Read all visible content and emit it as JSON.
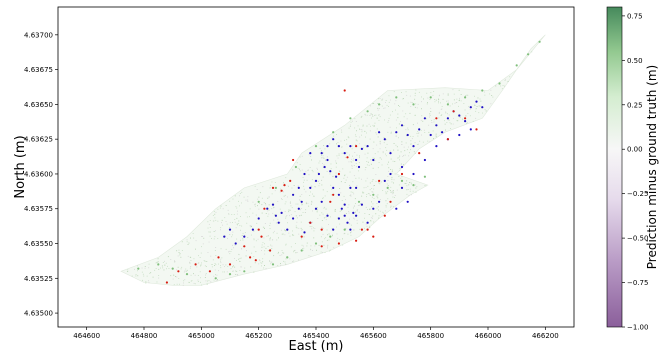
{
  "chart_data": {
    "type": "scatter",
    "title": "",
    "xlabel": "East (m)",
    "ylabel": "North (m)",
    "xlim": [
      464500,
      466300
    ],
    "ylim": [
      4.6349,
      4.6372
    ],
    "xticks": [
      464600,
      464800,
      465000,
      465200,
      465400,
      465600,
      465800,
      466000,
      466200
    ],
    "xtick_labels": [
      "464600",
      "464800",
      "465000",
      "465200",
      "465400",
      "465600",
      "465800",
      "466000",
      "466200"
    ],
    "yticks": [
      4.635,
      4.63525,
      4.6355,
      4.63575,
      4.636,
      4.63625,
      4.6365,
      4.63675,
      4.637
    ],
    "ytick_labels": [
      "4.63500",
      "4.63525",
      "4.63550",
      "4.63575",
      "4.63600",
      "4.63625",
      "4.63650",
      "4.63675",
      "4.63700"
    ],
    "grid": false,
    "colorbar": {
      "label": "Prediction minus ground truth (m)",
      "colormap": "PRGn",
      "range": [
        -1.0,
        0.8
      ],
      "ticks": [
        0.75,
        0.5,
        0.25,
        0.0,
        -0.25,
        -0.5,
        -0.75,
        -1.0
      ],
      "tick_labels": [
        "0.75",
        "0.50",
        "0.25",
        "0.00",
        "−0.25",
        "−0.50",
        "−0.75",
        "−1.00"
      ]
    },
    "outline": [
      [
        464720,
        4.6353
      ],
      [
        464850,
        4.6354
      ],
      [
        464950,
        4.63555
      ],
      [
        465050,
        4.63575
      ],
      [
        465150,
        4.6359
      ],
      [
        465300,
        4.636
      ],
      [
        465350,
        4.63615
      ],
      [
        465500,
        4.63635
      ],
      [
        465650,
        4.6366
      ],
      [
        465850,
        4.63662
      ],
      [
        466000,
        4.6366
      ],
      [
        466100,
        4.63675
      ],
      [
        466200,
        4.637
      ],
      [
        466150,
        4.6369
      ],
      [
        466050,
        4.6366
      ],
      [
        465980,
        4.6364
      ],
      [
        465850,
        4.6363
      ],
      [
        465760,
        4.63618
      ],
      [
        465680,
        4.636
      ],
      [
        465790,
        4.63592
      ],
      [
        465730,
        4.63585
      ],
      [
        465620,
        4.63568
      ],
      [
        465550,
        4.63555
      ],
      [
        465450,
        4.63545
      ],
      [
        465300,
        4.63535
      ],
      [
        465150,
        4.63528
      ],
      [
        465000,
        4.6352
      ],
      [
        464900,
        4.6352
      ],
      [
        464800,
        4.63522
      ]
    ],
    "series": [
      {
        "color": "#1f10c4",
        "points": [
          [
            465230,
            4.63575
          ],
          [
            465250,
            4.63578
          ],
          [
            465280,
            4.63572
          ],
          [
            465320,
            4.63568
          ],
          [
            465350,
            4.6358
          ],
          [
            465380,
            4.6359
          ],
          [
            465400,
            4.63595
          ],
          [
            465410,
            4.636
          ],
          [
            465420,
            4.63615
          ],
          [
            465430,
            4.63605
          ],
          [
            465440,
            4.6361
          ],
          [
            465450,
            4.63602
          ],
          [
            465460,
            4.6359
          ],
          [
            465470,
            4.63598
          ],
          [
            465480,
            4.63585
          ],
          [
            465490,
            4.63575
          ],
          [
            465500,
            4.6357
          ],
          [
            465510,
            4.63565
          ],
          [
            465520,
            4.6356
          ],
          [
            465530,
            4.63572
          ],
          [
            465540,
            4.6359
          ],
          [
            465550,
            4.63605
          ],
          [
            465560,
            4.63618
          ],
          [
            465580,
            4.6362
          ],
          [
            465600,
            4.6361
          ],
          [
            465620,
            4.6363
          ],
          [
            465640,
            4.63625
          ],
          [
            465660,
            4.63615
          ],
          [
            465680,
            4.6363
          ],
          [
            465700,
            4.63635
          ],
          [
            465720,
            4.63628
          ],
          [
            465740,
            4.6362
          ],
          [
            465760,
            4.63632
          ],
          [
            465780,
            4.6364
          ],
          [
            465800,
            4.63628
          ],
          [
            465820,
            4.63635
          ],
          [
            465840,
            4.6363
          ],
          [
            465860,
            4.6364
          ],
          [
            465880,
            4.63645
          ],
          [
            465900,
            4.63642
          ],
          [
            465920,
            4.63638
          ],
          [
            465940,
            4.63648
          ],
          [
            465960,
            4.63652
          ],
          [
            465980,
            4.63648
          ],
          [
            465300,
            4.6356
          ],
          [
            465320,
            4.63585
          ],
          [
            465340,
            4.63575
          ],
          [
            465360,
            4.63558
          ],
          [
            465380,
            4.63565
          ],
          [
            465400,
            4.63575
          ],
          [
            465420,
            4.6358
          ],
          [
            465440,
            4.6357
          ],
          [
            465460,
            4.6356
          ],
          [
            465480,
            4.63568
          ],
          [
            465500,
            4.63578
          ],
          [
            465520,
            4.6359
          ],
          [
            465540,
            4.6357
          ],
          [
            465560,
            4.63578
          ],
          [
            465580,
            4.63565
          ],
          [
            465600,
            4.63575
          ],
          [
            465620,
            4.6358
          ],
          [
            465500,
            4.63615
          ],
          [
            465520,
            4.6362
          ],
          [
            465540,
            4.6361
          ],
          [
            465480,
            4.6362
          ],
          [
            465460,
            4.63625
          ],
          [
            465440,
            4.6362
          ],
          [
            465380,
            4.63615
          ],
          [
            465360,
            4.636
          ],
          [
            465340,
            4.6359
          ],
          [
            465260,
            4.6357
          ],
          [
            465270,
            4.63565
          ],
          [
            465200,
            4.63568
          ],
          [
            465180,
            4.6356
          ],
          [
            465150,
            4.63555
          ],
          [
            465120,
            4.6355
          ],
          [
            465100,
            4.6356
          ],
          [
            465080,
            4.63555
          ],
          [
            465640,
            4.63595
          ],
          [
            465660,
            4.636
          ],
          [
            465700,
            4.63605
          ],
          [
            465740,
            4.636
          ],
          [
            465780,
            4.6361
          ],
          [
            465820,
            4.6362
          ],
          [
            465860,
            4.63625
          ],
          [
            465900,
            4.63628
          ],
          [
            465940,
            4.63632
          ],
          [
            465700,
            4.6359
          ],
          [
            465720,
            4.6358
          ],
          [
            465680,
            4.63575
          ]
        ]
      },
      {
        "color": "#d81b10",
        "points": [
          [
            465030,
            4.6353
          ],
          [
            465100,
            4.63535
          ],
          [
            465150,
            4.63548
          ],
          [
            465170,
            4.6354
          ],
          [
            465190,
            4.63538
          ],
          [
            465210,
            4.63555
          ],
          [
            465240,
            4.63545
          ],
          [
            465290,
            4.63592
          ],
          [
            465310,
            4.63595
          ],
          [
            465350,
            4.63555
          ],
          [
            465380,
            4.63565
          ],
          [
            465420,
            4.6356
          ],
          [
            465460,
            4.63585
          ],
          [
            465480,
            4.636
          ],
          [
            465510,
            4.63612
          ],
          [
            465540,
            4.6362
          ],
          [
            465560,
            4.6356
          ],
          [
            465600,
            4.63555
          ],
          [
            465640,
            4.6357
          ],
          [
            465660,
            4.6358
          ],
          [
            465700,
            4.636
          ],
          [
            465760,
            4.63615
          ],
          [
            465820,
            4.6364
          ],
          [
            465860,
            4.63625
          ],
          [
            465880,
            4.63645
          ],
          [
            465920,
            4.6364
          ],
          [
            465960,
            4.63632
          ],
          [
            465500,
            4.6366
          ],
          [
            465450,
            4.6358
          ],
          [
            465320,
            4.6361
          ],
          [
            465220,
            4.63575
          ],
          [
            465200,
            4.6356
          ],
          [
            465060,
            4.6354
          ],
          [
            464980,
            4.63535
          ],
          [
            464920,
            4.6353
          ],
          [
            464880,
            4.63522
          ],
          [
            465250,
            4.6359
          ],
          [
            465280,
            4.63588
          ],
          [
            465620,
            4.63595
          ],
          [
            465580,
            4.6356
          ],
          [
            465540,
            4.63552
          ],
          [
            465480,
            4.6355
          ],
          [
            465420,
            4.63548
          ]
        ]
      },
      {
        "color": "#7fbf7b",
        "points": [
          [
            465200,
            4.6358
          ],
          [
            465260,
            4.6359
          ],
          [
            465330,
            4.63605
          ],
          [
            465400,
            4.6362
          ],
          [
            465460,
            4.6363
          ],
          [
            465520,
            4.6364
          ],
          [
            465580,
            4.63645
          ],
          [
            465620,
            4.6365
          ],
          [
            465680,
            4.63655
          ],
          [
            465740,
            4.6365
          ],
          [
            465800,
            4.63655
          ],
          [
            465860,
            4.6365
          ],
          [
            465920,
            4.63655
          ],
          [
            465980,
            4.6366
          ],
          [
            466040,
            4.63665
          ],
          [
            466100,
            4.63678
          ],
          [
            466140,
            4.63686
          ],
          [
            466180,
            4.63695
          ],
          [
            465780,
            4.63598
          ],
          [
            465740,
            4.63592
          ],
          [
            465700,
            4.63595
          ],
          [
            465650,
            4.6359
          ],
          [
            465600,
            4.63585
          ],
          [
            465550,
            4.6358
          ],
          [
            465500,
            4.6356
          ],
          [
            465450,
            4.63555
          ],
          [
            465400,
            4.6355
          ],
          [
            465350,
            4.63545
          ],
          [
            465300,
            4.6354
          ],
          [
            465250,
            4.63535
          ],
          [
            465150,
            4.6353
          ],
          [
            465100,
            4.63528
          ],
          [
            465050,
            4.63525
          ],
          [
            464950,
            4.63528
          ],
          [
            464900,
            4.63532
          ],
          [
            464850,
            4.63535
          ],
          [
            464780,
            4.63532
          ]
        ]
      }
    ]
  }
}
